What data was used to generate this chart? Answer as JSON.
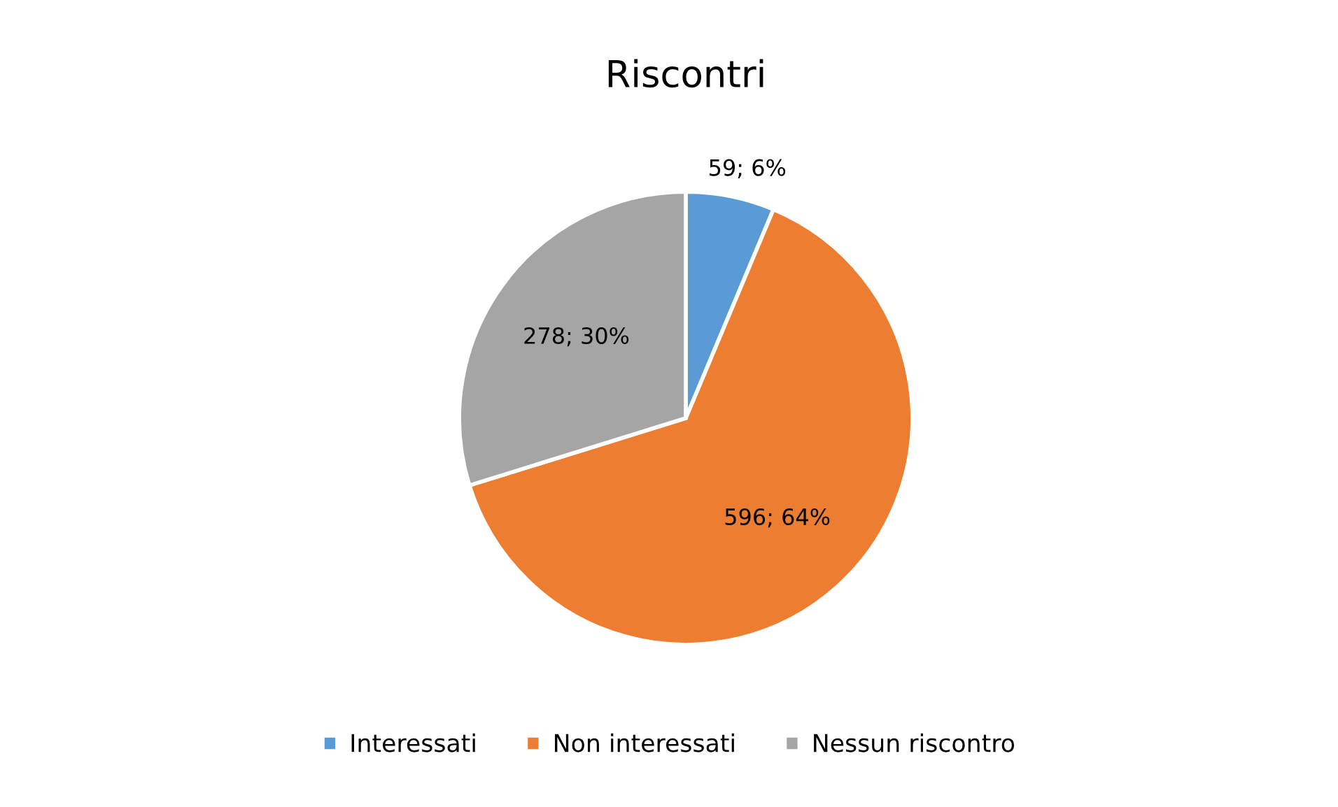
{
  "chart_data": {
    "type": "pie",
    "title": "Riscontri",
    "categories": [
      "Interessati",
      "Non interessati",
      "Nessun riscontro"
    ],
    "values": [
      59,
      596,
      278
    ],
    "colors": [
      "#5b9bd5",
      "#ed7d31",
      "#a5a5a5"
    ],
    "value_labels": [
      "59; 6%",
      "596; 64%",
      "278; 30%"
    ],
    "legend": "bottom"
  }
}
